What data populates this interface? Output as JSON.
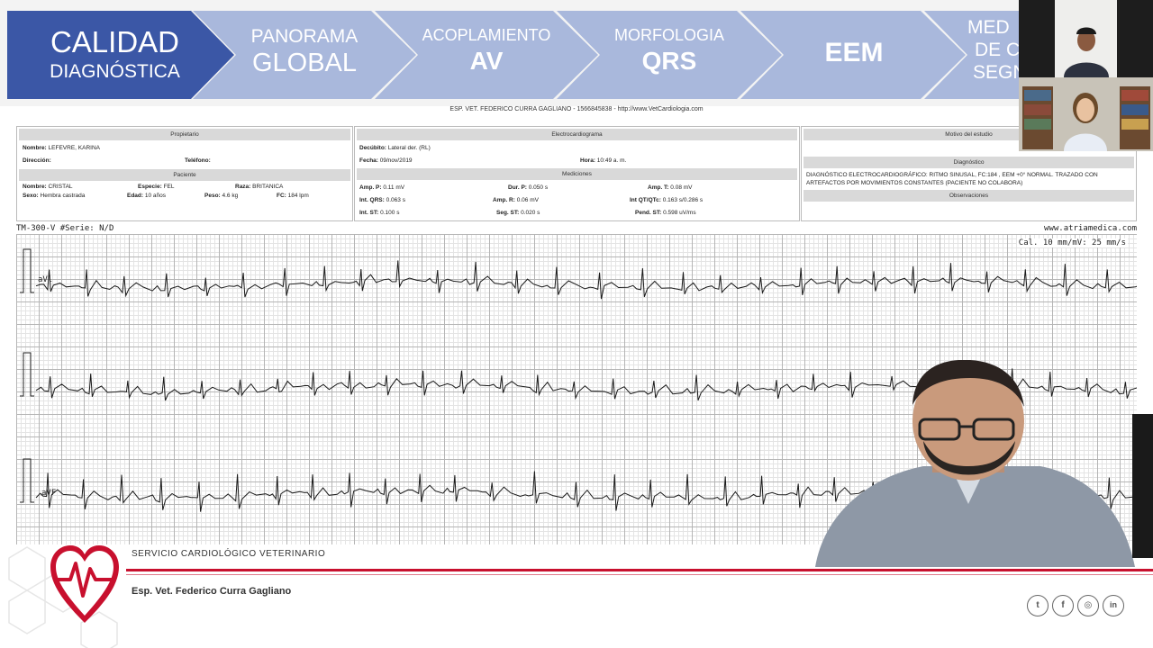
{
  "nav": {
    "steps": [
      {
        "line1": "CALIDAD",
        "line2": "DIAGNÓSTICA"
      },
      {
        "line1": "PANORAMA",
        "line2": "GLOBAL"
      },
      {
        "line1": "ACOPLAMIENTO",
        "line2": "AV"
      },
      {
        "line1": "MORFOLOGIA",
        "line2": "QRS"
      },
      {
        "line1": "",
        "line2": "EEM"
      },
      {
        "line1": "MED",
        "line2": "DE C",
        "line3": "SEGN"
      }
    ]
  },
  "sheet": {
    "header": "ESP. VET. FEDERICO CURRA GAGLIANO - 1566845838 - http://www.VetCardiologia.com",
    "owner": {
      "title": "Propietario",
      "name_label": "Nombre:",
      "name": "LEFEVRE, KARINA",
      "address_label": "Dirección:",
      "address": "",
      "phone_label": "Teléfono:",
      "phone": ""
    },
    "patient": {
      "title": "Paciente",
      "name_label": "Nombre:",
      "name": "CRISTAL",
      "species_label": "Especie:",
      "species": "FEL",
      "breed_label": "Raza:",
      "breed": "BRITANICA",
      "sex_label": "Sexo:",
      "sex": "Hembra castrada",
      "age_label": "Edad:",
      "age": "10 años",
      "weight_label": "Peso:",
      "weight": "4.6 kg",
      "hr_label": "FC:",
      "hr": "184 lpm"
    },
    "ecg": {
      "title": "Electrocardiograma",
      "decubito_label": "Decúbito:",
      "decubito": "Lateral der. (RL)",
      "date_label": "Fecha:",
      "date": "09/nov/2019",
      "time_label": "Hora:",
      "time": "10:49 a. m."
    },
    "measurements": {
      "title": "Mediciones",
      "amp_p_label": "Amp. P:",
      "amp_p": "0.11 mV",
      "dur_p_label": "Dur. P:",
      "dur_p": "0.050 s",
      "amp_t_label": "Amp. T:",
      "amp_t": "0.08 mV",
      "int_qrs_label": "Int. QRS:",
      "int_qrs": "0.063 s",
      "amp_r_label": "Amp. R:",
      "amp_r": "0.06 mV",
      "int_qt_label": "Int QT/QTc:",
      "int_qt": "0.163 s/0.286 s",
      "int_st_label": "Int. ST:",
      "int_st": "0.100 s",
      "seg_st_label": "Seg. ST:",
      "seg_st": "0.020 s",
      "pend_st_label": "Pend. ST:",
      "pend_st": "0.598 uV/ms"
    },
    "study": {
      "title": "Motivo del estudio",
      "diagnosis_title": "Diagnóstico",
      "diagnosis": "DIAGNÓSTICO ELECTROCARDIOGRÁFICO: RITMO SINUSAL, FC:184 , EEM +0° NORMAL. TRAZADO CON ARTEFACTOS POR MOVIMIENTOS CONSTANTES (PACIENTE NO COLABORA)",
      "observations_title": "Observaciones"
    },
    "device": "TM-300-V  #Serie: N/D",
    "website": "www.atriamedica.com",
    "calibration": "Cal. 10 mm/mV: 25 mm/s",
    "leads": [
      "aVl",
      "",
      "aVF"
    ]
  },
  "footer": {
    "service": "SERVICIO CARDIOLÓGICO VETERINARIO",
    "doctor": "Esp. Vet. Federico Curra Gagliano",
    "social": [
      {
        "icon": "twitter-icon",
        "glyph": "t"
      },
      {
        "icon": "facebook-icon",
        "glyph": "f"
      },
      {
        "icon": "instagram-icon",
        "glyph": "◎"
      },
      {
        "icon": "linkedin-icon",
        "glyph": "in"
      }
    ]
  },
  "colors": {
    "active_step": "#3b57a6",
    "inactive_step": "#a9b8dc",
    "brand_red": "#c8102e"
  }
}
